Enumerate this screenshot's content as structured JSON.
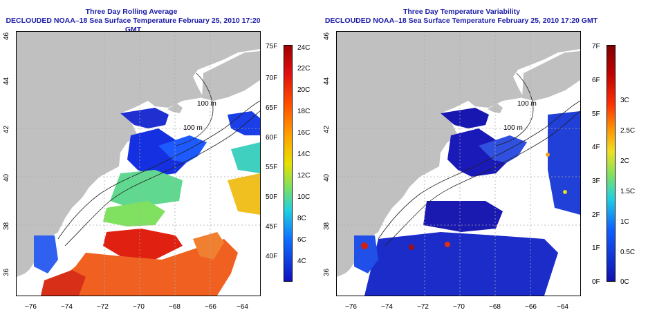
{
  "left_panel": {
    "title_line1": "Three Day Rolling Average",
    "title_line2": "DECLOUDED NOAA–18 Sea Surface Temperature February 25, 2010 17:20 GMT",
    "contour_labels": [
      "100 m",
      "100 m",
      "m"
    ],
    "colorbar_f_labels": [
      "75F",
      "70F",
      "65F",
      "60F",
      "55F",
      "50F",
      "45F",
      "40F"
    ],
    "colorbar_c_labels": [
      "24C",
      "22C",
      "20C",
      "18C",
      "16C",
      "14C",
      "12C",
      "10C",
      "8C",
      "6C",
      "4C"
    ]
  },
  "right_panel": {
    "title_line1": "Three Day Temperature Variability",
    "title_line2": "DECLOUDED NOAA–18 Sea Surface Temperature February 25, 2010 17:20 GMT",
    "contour_labels": [
      "100 m",
      "100 m",
      "m"
    ],
    "colorbar_f_labels": [
      "7F",
      "6F",
      "5F",
      "4F",
      "3F",
      "2F",
      "1F",
      "0F"
    ],
    "colorbar_c_labels": [
      "3C",
      "2.5C",
      "2C",
      "1.5C",
      "1C",
      "0.5C",
      "0C"
    ]
  },
  "axes": {
    "x_labels": [
      "−76",
      "−74",
      "−72",
      "−70",
      "−68",
      "−66",
      "−64"
    ],
    "y_labels": [
      "46",
      "44",
      "42",
      "40",
      "38",
      "36"
    ]
  },
  "colors": {
    "title": "#1a1aa6",
    "land": "#c0c0c0",
    "grid": "#aaaaaa"
  }
}
